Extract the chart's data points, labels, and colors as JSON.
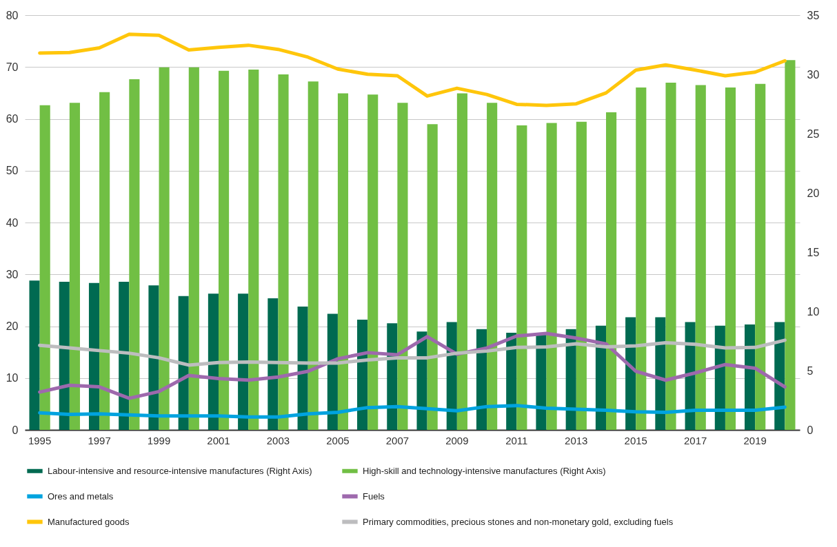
{
  "chart_data": {
    "type": "bar",
    "categories": [
      "1995",
      null,
      "1997",
      null,
      "1999",
      null,
      "2001",
      null,
      "2003",
      null,
      "2005",
      null,
      "2007",
      null,
      "2009",
      null,
      "2011",
      null,
      "2013",
      null,
      "2015",
      null,
      "2017",
      null,
      "2019",
      null
    ],
    "series": [
      {
        "name": "Labour-intensive and resource-intensive manufactures (Right Axis)",
        "axis": "y2",
        "color": "#006a51",
        "values": [
          12.6,
          12.5,
          12.4,
          12.5,
          12.2,
          11.3,
          11.5,
          11.5,
          11.1,
          10.4,
          9.8,
          9.3,
          9.0,
          8.3,
          9.1,
          8.5,
          8.2,
          8.1,
          8.5,
          8.8,
          9.5,
          9.5,
          9.1,
          8.8,
          8.9,
          9.1
        ]
      },
      {
        "name": "High-skill and technology-intensive manufactures (Right Axis)",
        "axis": "y2",
        "color": "#71bf44",
        "values": [
          27.4,
          27.6,
          28.5,
          29.6,
          30.6,
          30.6,
          30.3,
          30.4,
          30.0,
          29.4,
          28.4,
          28.3,
          27.6,
          25.8,
          28.4,
          27.6,
          25.7,
          25.9,
          26.0,
          26.8,
          28.9,
          29.3,
          29.1,
          28.9,
          29.2,
          31.2
        ]
      },
      {
        "name": "Ores and metals",
        "type": "line",
        "color": "#00a3df",
        "values": [
          3.3,
          3.0,
          3.1,
          2.9,
          2.7,
          2.7,
          2.7,
          2.5,
          2.5,
          3.1,
          3.4,
          4.3,
          4.5,
          4.1,
          3.7,
          4.5,
          4.7,
          4.2,
          4.0,
          3.8,
          3.5,
          3.4,
          3.8,
          3.8,
          3.8,
          4.4
        ]
      },
      {
        "name": "Fuels",
        "type": "line",
        "color": "#9e69ad",
        "values": [
          7.3,
          8.6,
          8.3,
          6.1,
          7.4,
          10.5,
          9.9,
          9.6,
          10.2,
          11.3,
          13.7,
          14.9,
          14.5,
          18.0,
          14.6,
          15.8,
          18.1,
          18.6,
          17.7,
          16.6,
          11.3,
          9.6,
          11.0,
          12.6,
          11.9,
          8.3
        ]
      },
      {
        "name": "Manufactured goods",
        "type": "line",
        "color": "#ffc60b",
        "values": [
          72.7,
          72.8,
          73.7,
          76.3,
          76.1,
          73.3,
          73.8,
          74.2,
          73.4,
          71.9,
          69.6,
          68.6,
          68.3,
          64.4,
          65.9,
          64.7,
          62.8,
          62.6,
          62.9,
          65.0,
          69.4,
          70.4,
          69.4,
          68.3,
          69.0,
          71.2
        ]
      },
      {
        "name": "Primary commodities, precious stones and non-monetary gold, excluding fuels",
        "type": "line",
        "color": "#bdbdbf",
        "values": [
          16.3,
          15.8,
          15.3,
          14.8,
          13.9,
          12.5,
          13.0,
          13.1,
          13.0,
          12.9,
          12.9,
          13.5,
          13.9,
          13.9,
          14.8,
          15.2,
          15.9,
          16.0,
          16.6,
          16.0,
          16.2,
          16.8,
          16.5,
          15.8,
          15.9,
          17.3
        ]
      }
    ],
    "ylim": [
      0,
      80
    ],
    "yticks": [
      0,
      10,
      20,
      30,
      40,
      50,
      60,
      70,
      80
    ],
    "y2lim": [
      0,
      35
    ],
    "y2ticks": [
      0,
      5,
      10,
      15,
      20,
      25,
      30,
      35
    ],
    "grid": "y",
    "legend": "bottom"
  }
}
